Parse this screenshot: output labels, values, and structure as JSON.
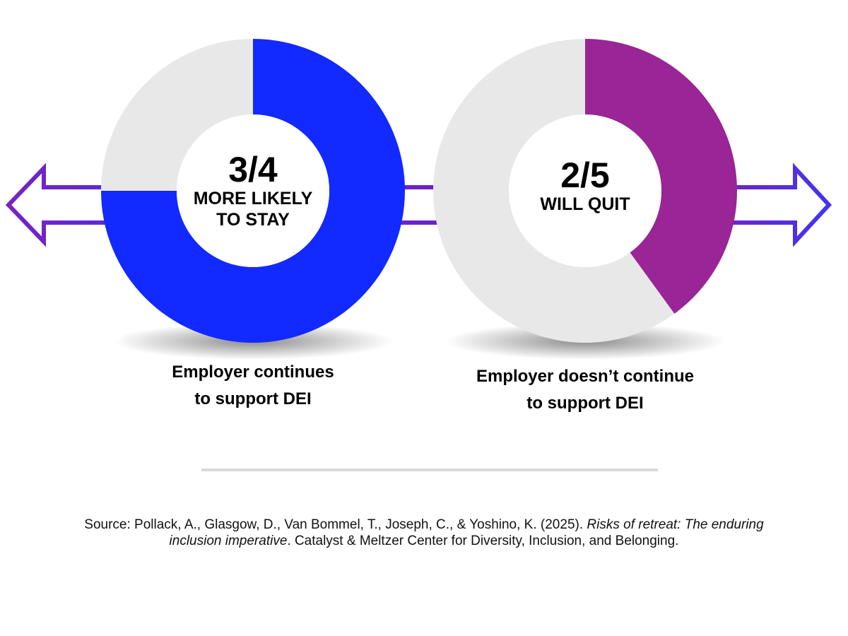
{
  "chart_data": [
    {
      "type": "pie",
      "subtype": "donut",
      "center_value": "3/4",
      "center_label_lines": [
        "MORE LIKELY",
        "TO STAY"
      ],
      "slices": [
        {
          "name": "highlight",
          "value": 0.75,
          "color": "#1229ff"
        },
        {
          "name": "remainder",
          "value": 0.25,
          "color": "#e8e8e8"
        }
      ],
      "caption_lines": [
        "Employer continues",
        "to support DEI"
      ],
      "arrow_direction": "left"
    },
    {
      "type": "pie",
      "subtype": "donut",
      "center_value": "2/5",
      "center_label_lines": [
        "WILL QUIT"
      ],
      "slices": [
        {
          "name": "highlight",
          "value": 0.4,
          "color": "#992596"
        },
        {
          "name": "remainder",
          "value": 0.6,
          "color": "#e8e8e8"
        }
      ],
      "caption_lines": [
        "Employer doesn’t continue",
        "to support DEI"
      ],
      "arrow_direction": "right"
    }
  ],
  "colors": {
    "arrow_purple": "#6a22c9",
    "arrow_blue": "#4a2cf0",
    "divider": "#d9d9d9"
  },
  "source": {
    "prefix": "Source: Pollack, A., Glasgow, D., Van Bommel, T., Joseph, C., & Yoshino, K. (2025). ",
    "title": "Risks of retreat: The enduring inclusion imperative",
    "suffix": ". Catalyst & Meltzer Center for Diversity, Inclusion, and Belonging."
  }
}
